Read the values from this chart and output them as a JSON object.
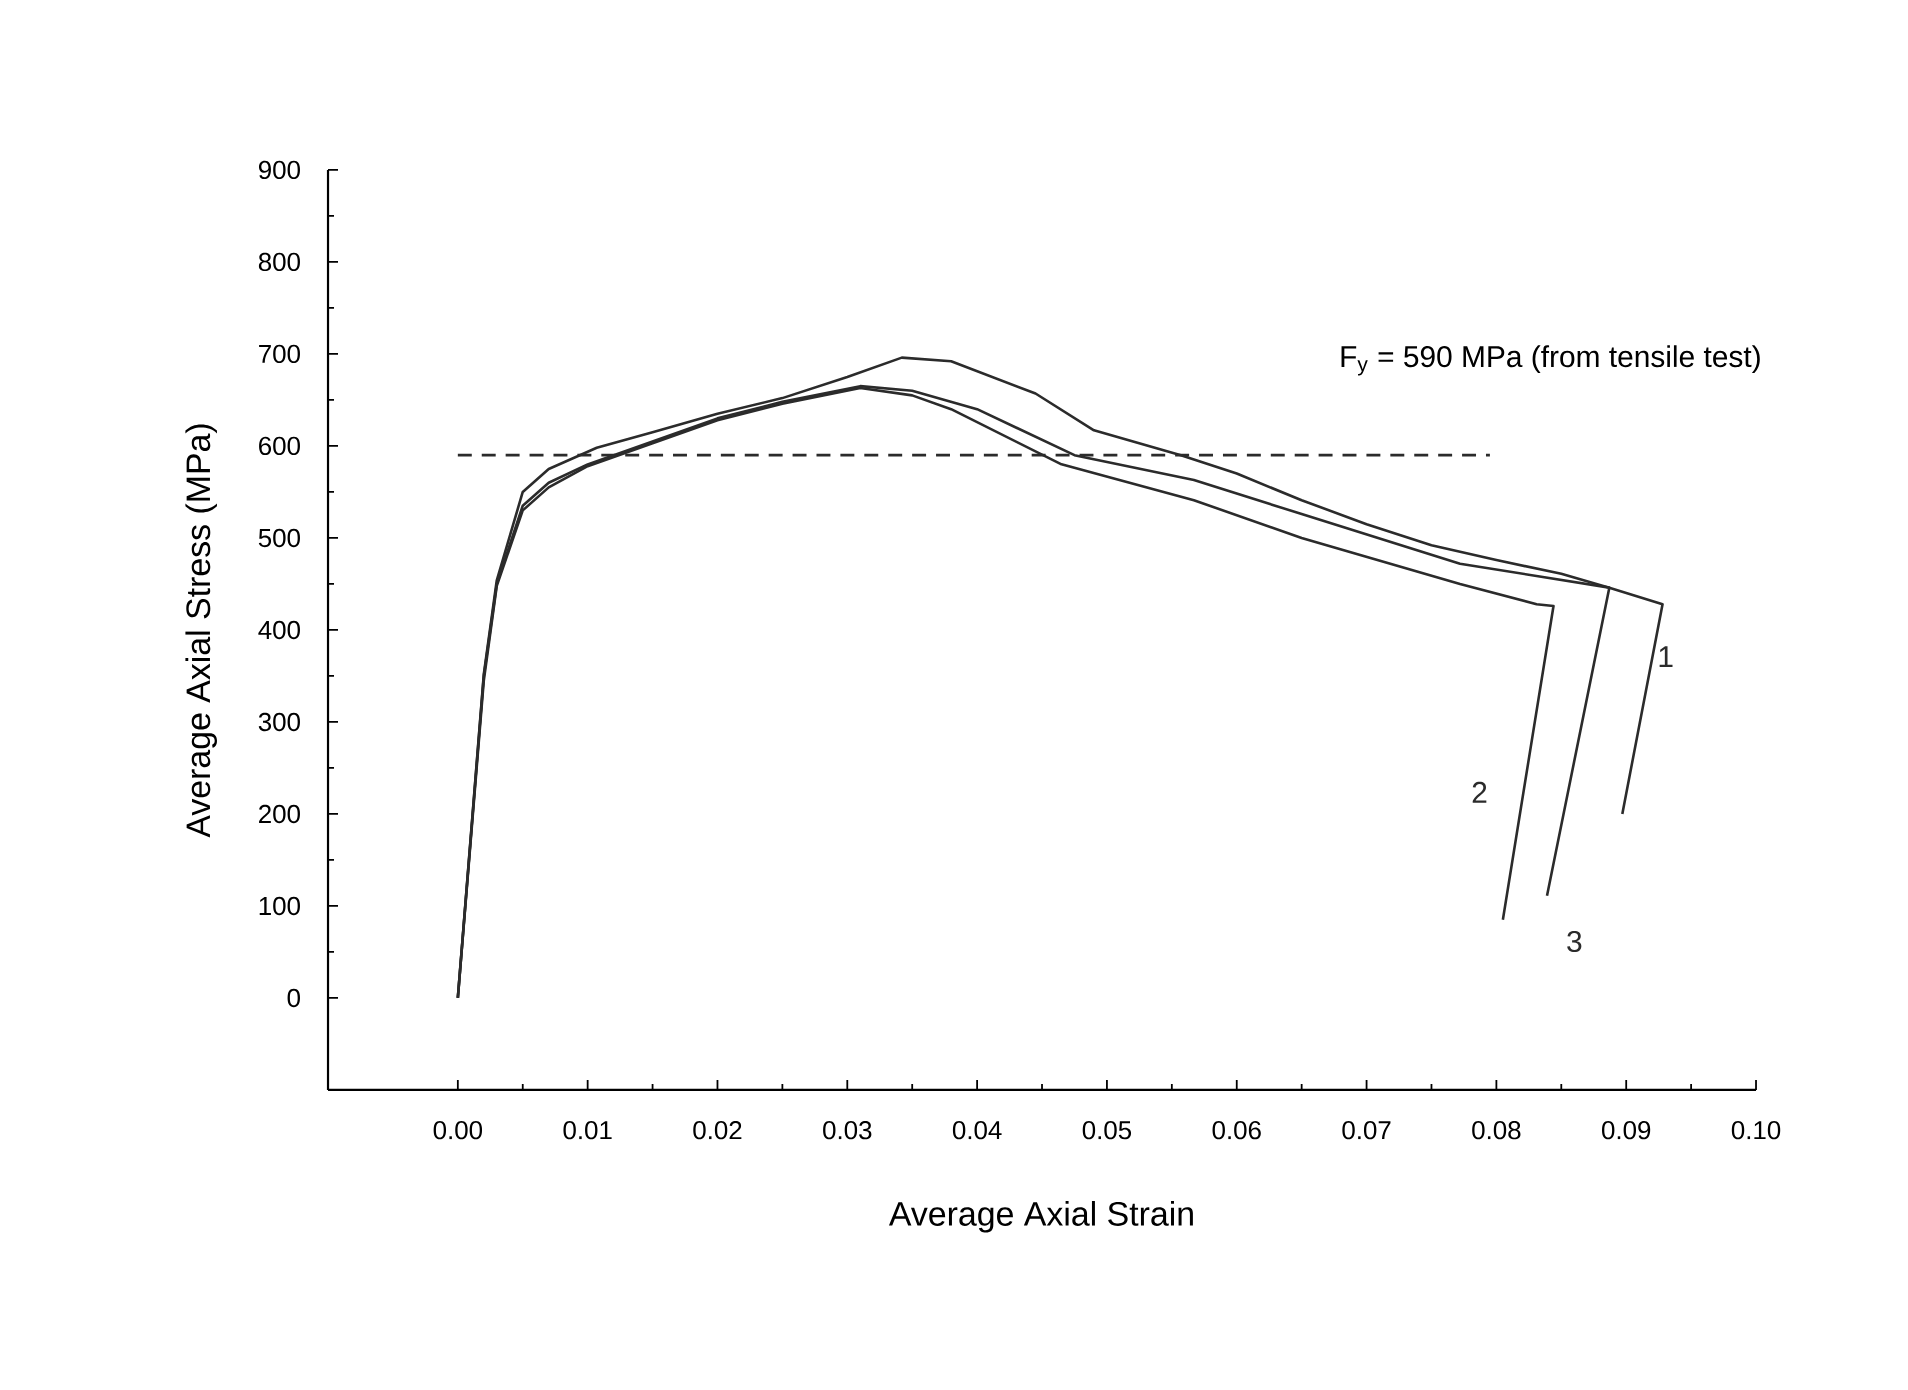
{
  "chart_data": {
    "type": "line",
    "xlabel": "Average Axial Strain",
    "ylabel": "Average Axial Stress (MPa)",
    "xlim": [
      -0.01,
      0.1
    ],
    "ylim": [
      -100,
      900
    ],
    "xticks": [
      {
        "value": 0,
        "label": "0.00"
      },
      {
        "value": 0.01,
        "label": "0.01"
      },
      {
        "value": 0.02,
        "label": "0.02"
      },
      {
        "value": 0.03,
        "label": "0.03"
      },
      {
        "value": 0.04,
        "label": "0.04"
      },
      {
        "value": 0.05,
        "label": "0.05"
      },
      {
        "value": 0.06,
        "label": "0.06"
      },
      {
        "value": 0.07,
        "label": "0.07"
      },
      {
        "value": 0.08,
        "label": "0.08"
      },
      {
        "value": 0.09,
        "label": "0.09"
      },
      {
        "value": 0.1,
        "label": "0.10"
      }
    ],
    "yticks": [
      0,
      100,
      200,
      300,
      400,
      500,
      600,
      700,
      800,
      900
    ],
    "grid": false,
    "marker": "none",
    "line_style": "solid",
    "series": [
      {
        "name": "1",
        "color": "#2b2b2b",
        "x": [
          0,
          0.002,
          0.003,
          0.005,
          0.007,
          0.0107,
          0.015,
          0.02,
          0.025,
          0.03,
          0.0342,
          0.038,
          0.0445,
          0.049,
          0.0557,
          0.06,
          0.065,
          0.07,
          0.075,
          0.08,
          0.085,
          0.0887,
          0.0928,
          0.0897
        ],
        "values": [
          0,
          352,
          454,
          550,
          575,
          598,
          615,
          635,
          652,
          675,
          696,
          692,
          657,
          617,
          590,
          570,
          541,
          515,
          492,
          476,
          461,
          446,
          428,
          200
        ]
      },
      {
        "name": "2",
        "color": "#2b2b2b",
        "x": [
          0,
          0.002,
          0.003,
          0.005,
          0.007,
          0.01,
          0.015,
          0.02,
          0.025,
          0.031,
          0.035,
          0.038,
          0.0465,
          0.0567,
          0.065,
          0.0772,
          0.0831,
          0.0844,
          0.0805
        ],
        "values": [
          0,
          345,
          448,
          530,
          555,
          578,
          603,
          628,
          646,
          663,
          655,
          640,
          580,
          541,
          500,
          450,
          428,
          426,
          85
        ]
      },
      {
        "name": "3",
        "color": "#2b2b2b",
        "x": [
          0,
          0.002,
          0.003,
          0.005,
          0.007,
          0.01,
          0.015,
          0.02,
          0.025,
          0.031,
          0.035,
          0.04,
          0.0475,
          0.0567,
          0.065,
          0.0772,
          0.0887,
          0.0839
        ],
        "values": [
          0,
          350,
          450,
          535,
          560,
          580,
          605,
          630,
          648,
          665,
          660,
          640,
          590,
          563,
          526,
          472,
          446,
          111
        ]
      },
      {
        "color": "#2b2b2b",
        "line_style": "dashed",
        "x": [
          0,
          0.0795
        ],
        "values": [
          590,
          590
        ]
      }
    ],
    "annotations": [
      "F$_{y}$ = 590 MPa (from tensile test)"
    ]
  }
}
